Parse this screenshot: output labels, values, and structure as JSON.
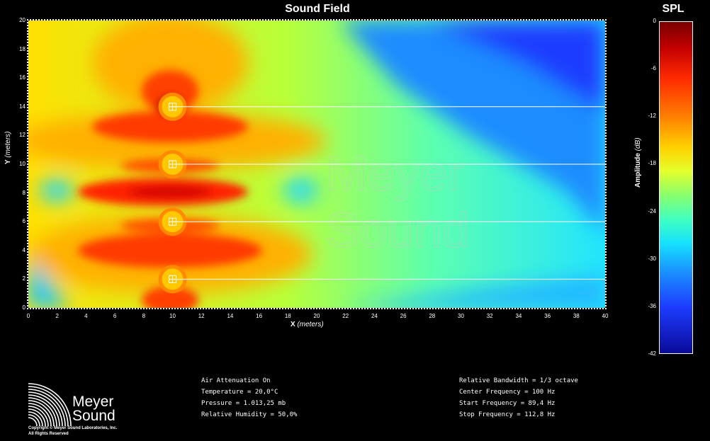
{
  "chart_data": {
    "type": "heatmap",
    "title": "Sound Field",
    "xlabel": "X",
    "xlabel_unit": "(meters)",
    "ylabel": "Y",
    "ylabel_unit": "(meters)",
    "xlim": [
      0,
      40
    ],
    "ylim": [
      0,
      20
    ],
    "x_ticks": [
      0,
      2,
      4,
      6,
      8,
      10,
      12,
      14,
      16,
      18,
      20,
      22,
      24,
      26,
      28,
      30,
      32,
      34,
      36,
      38,
      40
    ],
    "y_ticks": [
      0,
      2,
      4,
      6,
      8,
      10,
      12,
      14,
      16,
      18,
      20
    ],
    "sources": [
      {
        "x": 10,
        "y": 2
      },
      {
        "x": 10,
        "y": 6
      },
      {
        "x": 10,
        "y": 10
      },
      {
        "x": 10,
        "y": 14
      }
    ],
    "colorbar": {
      "title": "SPL",
      "label": "Amplitude",
      "unit": "(dB)",
      "range": [
        -42,
        0
      ],
      "ticks": [
        0,
        -6,
        -12,
        -18,
        -24,
        -30,
        -36,
        -42
      ],
      "colormap": [
        "#7a0000",
        "#c40000",
        "#ff2a00",
        "#ff7a00",
        "#ffd200",
        "#e5ff2a",
        "#8cff6a",
        "#3cffc4",
        "#15e0ff",
        "#1a8cff",
        "#1d3cff",
        "#0a0a9a"
      ]
    },
    "watermark_line1": "Meyer",
    "watermark_line2": "Sound"
  },
  "conditions_left": [
    "Air Attenuation On",
    "Temperature = 20,0°C",
    "Pressure = 1.013,25  mb",
    "Relative Humidity = 50,0%"
  ],
  "conditions_right": [
    "Relative Bandwidth = 1/3 octave",
    "Center Frequency = 100 Hz",
    "Start Frequency = 89,4 Hz",
    "Stop Frequency = 112,8 Hz"
  ],
  "logo": {
    "name_line1": "Meyer",
    "name_line2": "Sound",
    "copyright_line1": "Copyright © Meyer Sound Laboratories, Inc.",
    "copyright_line2": "All Rights Reserved"
  }
}
